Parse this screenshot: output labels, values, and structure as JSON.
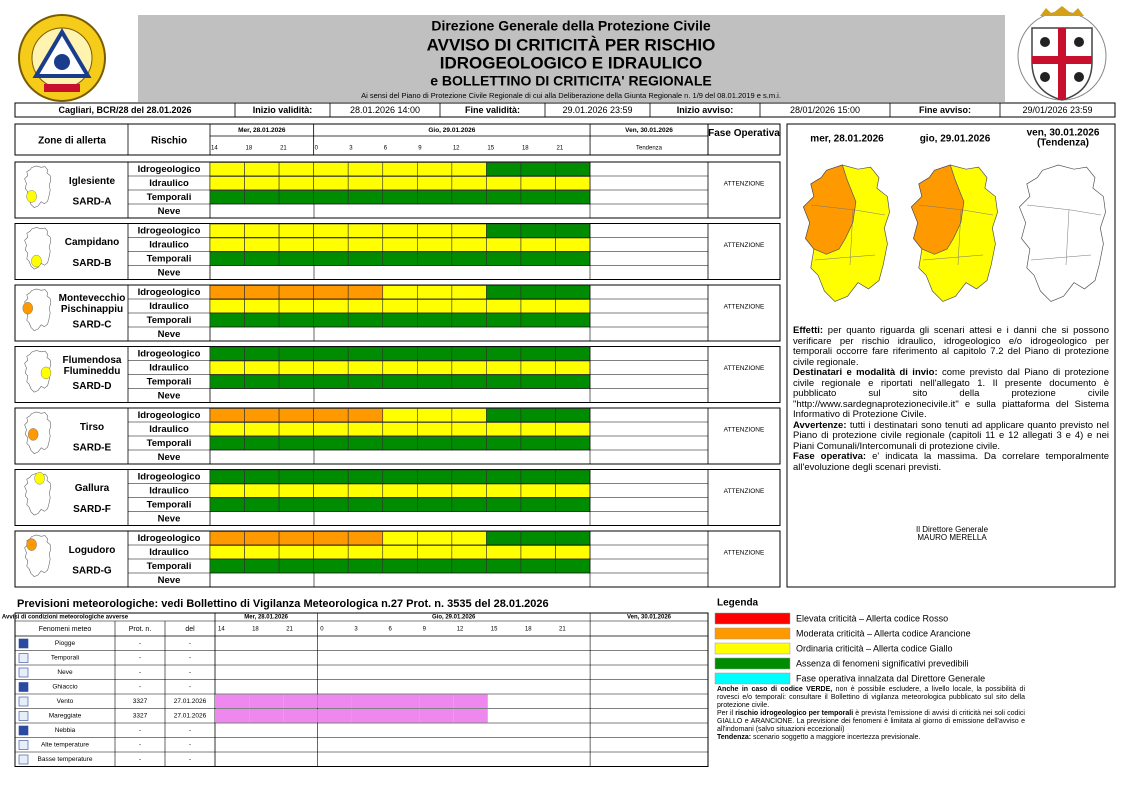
{
  "header": {
    "org": "Direzione Generale della Protezione Civile",
    "title1": "AVVISO DI CRITICITÀ PER RISCHIO",
    "title2": "IDROGEOLOGICO E IDRAULICO",
    "title3": "e BOLLETTINO DI CRITICITA' REGIONALE",
    "legal": "Ai sensi del Piano di Protezione Civile Regionale di cui alla Deliberazione della Giunta Regionale n. 1/9 del 08.01.2019 e s.m.i."
  },
  "info": {
    "issue": "Cagliari, BCR/28 del 28.01.2026",
    "fields": [
      {
        "label": "Inizio validità:",
        "value": "28.01.2026 14:00"
      },
      {
        "label": "Fine validità:",
        "value": "29.01.2026 23:59"
      },
      {
        "label": "Inizio avviso:",
        "value": "28/01/2026 15:00"
      },
      {
        "label": "Fine avviso:",
        "value": "29/01/2026 23:59"
      }
    ]
  },
  "table": {
    "headers": {
      "zone": "Zone di allerta",
      "risk": "Rischio",
      "trend": "Tendenza",
      "phase": "Fase Operativa"
    },
    "days": [
      {
        "label": "Mer, 28.01.2026",
        "hours": [
          "14",
          "18",
          "21"
        ]
      },
      {
        "label": "Gio, 29.01.2026",
        "hours": [
          "0",
          "3",
          "6",
          "9",
          "12",
          "15",
          "18",
          "21"
        ]
      },
      {
        "label": "Ven, 30.01.2026",
        "hours": []
      }
    ],
    "zones": [
      {
        "name": "Iglesiente",
        "code": "SARD-A",
        "icon_color": "#ffff00",
        "phase": "ATTENZIONE",
        "rows": [
          {
            "risk": "Idrogeologico",
            "colors": [
              "#ffff00",
              "#ffff00",
              "#ffff00",
              "#ffff00",
              "#ffff00",
              "#ffff00",
              "#ffff00",
              "#ffff00",
              "#008c00",
              "#008c00",
              "#008c00"
            ]
          },
          {
            "risk": "Idraulico",
            "colors": [
              "#ffff00",
              "#ffff00",
              "#ffff00",
              "#ffff00",
              "#ffff00",
              "#ffff00",
              "#ffff00",
              "#ffff00",
              "#ffff00",
              "#ffff00",
              "#ffff00"
            ]
          },
          {
            "risk": "Temporali",
            "colors": [
              "#008c00",
              "#008c00",
              "#008c00",
              "#008c00",
              "#008c00",
              "#008c00",
              "#008c00",
              "#008c00",
              "#008c00",
              "#008c00",
              "#008c00"
            ]
          },
          {
            "risk": "Neve",
            "colors": []
          }
        ]
      },
      {
        "name": "Campidano",
        "code": "SARD-B",
        "icon_color": "#ffff00",
        "phase": "ATTENZIONE",
        "rows": [
          {
            "risk": "Idrogeologico",
            "colors": [
              "#ffff00",
              "#ffff00",
              "#ffff00",
              "#ffff00",
              "#ffff00",
              "#ffff00",
              "#ffff00",
              "#ffff00",
              "#008c00",
              "#008c00",
              "#008c00"
            ]
          },
          {
            "risk": "Idraulico",
            "colors": [
              "#ffff00",
              "#ffff00",
              "#ffff00",
              "#ffff00",
              "#ffff00",
              "#ffff00",
              "#ffff00",
              "#ffff00",
              "#ffff00",
              "#ffff00",
              "#ffff00"
            ]
          },
          {
            "risk": "Temporali",
            "colors": [
              "#008c00",
              "#008c00",
              "#008c00",
              "#008c00",
              "#008c00",
              "#008c00",
              "#008c00",
              "#008c00",
              "#008c00",
              "#008c00",
              "#008c00"
            ]
          },
          {
            "risk": "Neve",
            "colors": []
          }
        ]
      },
      {
        "name": "Montevecchio Pischinappiu",
        "code": "SARD-C",
        "icon_color": "#ff9900",
        "phase": "ATTENZIONE",
        "rows": [
          {
            "risk": "Idrogeologico",
            "colors": [
              "#ff9900",
              "#ff9900",
              "#ff9900",
              "#ff9900",
              "#ff9900",
              "#ffff00",
              "#ffff00",
              "#ffff00",
              "#008c00",
              "#008c00",
              "#008c00"
            ]
          },
          {
            "risk": "Idraulico",
            "colors": [
              "#ffff00",
              "#ffff00",
              "#ffff00",
              "#ffff00",
              "#ffff00",
              "#ffff00",
              "#ffff00",
              "#ffff00",
              "#ffff00",
              "#ffff00",
              "#ffff00"
            ]
          },
          {
            "risk": "Temporali",
            "colors": [
              "#008c00",
              "#008c00",
              "#008c00",
              "#008c00",
              "#008c00",
              "#008c00",
              "#008c00",
              "#008c00",
              "#008c00",
              "#008c00",
              "#008c00"
            ]
          },
          {
            "risk": "Neve",
            "colors": []
          }
        ]
      },
      {
        "name": "Flumendosa Flumineddu",
        "code": "SARD-D",
        "icon_color": "#ffff00",
        "phase": "ATTENZIONE",
        "rows": [
          {
            "risk": "Idrogeologico",
            "colors": [
              "#008c00",
              "#008c00",
              "#008c00",
              "#008c00",
              "#008c00",
              "#008c00",
              "#008c00",
              "#008c00",
              "#008c00",
              "#008c00",
              "#008c00"
            ]
          },
          {
            "risk": "Idraulico",
            "colors": [
              "#ffff00",
              "#ffff00",
              "#ffff00",
              "#ffff00",
              "#ffff00",
              "#ffff00",
              "#ffff00",
              "#ffff00",
              "#ffff00",
              "#ffff00",
              "#ffff00"
            ]
          },
          {
            "risk": "Temporali",
            "colors": [
              "#008c00",
              "#008c00",
              "#008c00",
              "#008c00",
              "#008c00",
              "#008c00",
              "#008c00",
              "#008c00",
              "#008c00",
              "#008c00",
              "#008c00"
            ]
          },
          {
            "risk": "Neve",
            "colors": []
          }
        ]
      },
      {
        "name": "Tirso",
        "code": "SARD-E",
        "icon_color": "#ff9900",
        "phase": "ATTENZIONE",
        "rows": [
          {
            "risk": "Idrogeologico",
            "colors": [
              "#ff9900",
              "#ff9900",
              "#ff9900",
              "#ff9900",
              "#ff9900",
              "#ffff00",
              "#ffff00",
              "#ffff00",
              "#008c00",
              "#008c00",
              "#008c00"
            ]
          },
          {
            "risk": "Idraulico",
            "colors": [
              "#ffff00",
              "#ffff00",
              "#ffff00",
              "#ffff00",
              "#ffff00",
              "#ffff00",
              "#ffff00",
              "#ffff00",
              "#ffff00",
              "#ffff00",
              "#ffff00"
            ]
          },
          {
            "risk": "Temporali",
            "colors": [
              "#008c00",
              "#008c00",
              "#008c00",
              "#008c00",
              "#008c00",
              "#008c00",
              "#008c00",
              "#008c00",
              "#008c00",
              "#008c00",
              "#008c00"
            ]
          },
          {
            "risk": "Neve",
            "colors": []
          }
        ]
      },
      {
        "name": "Gallura",
        "code": "SARD-F",
        "icon_color": "#ffff00",
        "phase": "ATTENZIONE",
        "rows": [
          {
            "risk": "Idrogeologico",
            "colors": [
              "#008c00",
              "#008c00",
              "#008c00",
              "#008c00",
              "#008c00",
              "#008c00",
              "#008c00",
              "#008c00",
              "#008c00",
              "#008c00",
              "#008c00"
            ]
          },
          {
            "risk": "Idraulico",
            "colors": [
              "#ffff00",
              "#ffff00",
              "#ffff00",
              "#ffff00",
              "#ffff00",
              "#ffff00",
              "#ffff00",
              "#ffff00",
              "#ffff00",
              "#ffff00",
              "#ffff00"
            ]
          },
          {
            "risk": "Temporali",
            "colors": [
              "#008c00",
              "#008c00",
              "#008c00",
              "#008c00",
              "#008c00",
              "#008c00",
              "#008c00",
              "#008c00",
              "#008c00",
              "#008c00",
              "#008c00"
            ]
          },
          {
            "risk": "Neve",
            "colors": []
          }
        ]
      },
      {
        "name": "Logudoro",
        "code": "SARD-G",
        "icon_color": "#ff9900",
        "phase": "ATTENZIONE",
        "rows": [
          {
            "risk": "Idrogeologico",
            "colors": [
              "#ff9900",
              "#ff9900",
              "#ff9900",
              "#ff9900",
              "#ff9900",
              "#ffff00",
              "#ffff00",
              "#ffff00",
              "#008c00",
              "#008c00",
              "#008c00"
            ]
          },
          {
            "risk": "Idraulico",
            "colors": [
              "#ffff00",
              "#ffff00",
              "#ffff00",
              "#ffff00",
              "#ffff00",
              "#ffff00",
              "#ffff00",
              "#ffff00",
              "#ffff00",
              "#ffff00",
              "#ffff00"
            ]
          },
          {
            "risk": "Temporali",
            "colors": [
              "#008c00",
              "#008c00",
              "#008c00",
              "#008c00",
              "#008c00",
              "#008c00",
              "#008c00",
              "#008c00",
              "#008c00",
              "#008c00",
              "#008c00"
            ]
          },
          {
            "risk": "Neve",
            "colors": []
          }
        ]
      }
    ]
  },
  "panel": {
    "maps": [
      {
        "date": "mer, 28.01.2026",
        "fill": "#ffff00",
        "highlight": "#ff9900"
      },
      {
        "date": "gio, 29.01.2026",
        "fill": "#ffff00",
        "highlight": "#ff9900"
      },
      {
        "date": "ven, 30.01.2026",
        "note": "(Tendenza)",
        "fill": "#ffffff",
        "highlight": null
      }
    ],
    "paragraphs": [
      [
        {
          "text": "Effetti:",
          "bold": true
        },
        {
          "text": " per quanto riguarda gli scenari attesi e i danni che si possono verificare per rischio idraulico, idrogeologico e/o idrogeologico per temporali occorre fare riferimento al capitolo 7.2 del Piano di protezione civile regionale.",
          "bold": false
        }
      ],
      [
        {
          "text": "Destinatari e modalità di invio:",
          "bold": true
        },
        {
          "text": " come previsto dal Piano di protezione civile regionale e riportati nell'allegato 1. Il presente documento è pubblicato sul sito della protezione civile \"http://www.sardegnaprotezionecivile.it\" e sulla piattaforma del Sistema Informativo di Protezione Civile.",
          "bold": false
        }
      ],
      [
        {
          "text": "Avvertenze:",
          "bold": true
        },
        {
          "text": " tutti i destinatari sono tenuti ad applicare quanto previsto nel Piano di protezione civile regionale (capitoli 11 e 12 allegati 3 e 4) e nei Piani Comunali/Intercomunali di protezione civile.",
          "bold": false
        }
      ],
      [
        {
          "text": "Fase operativa:",
          "bold": true
        },
        {
          "text": " e' indicata la massima. Da correlare temporalmente all'evoluzione degli scenari previsti.",
          "bold": false
        }
      ]
    ],
    "signature": [
      "Il Direttore Generale",
      "MAURO MERELLA"
    ]
  },
  "meteo": {
    "title": "Previsioni meteorologiche: vedi Bollettino di Vigilanza Meteorologica n.27 Prot. n. 3535 del 28.01.2026",
    "caption": "Avvisi di condizioni meteorologiche avverse",
    "headers": [
      "Fenomeni meteo",
      "Prot. n.",
      "del"
    ],
    "days": [
      {
        "label": "Mer, 28.01.2026",
        "hours": [
          "14",
          "18",
          "21"
        ]
      },
      {
        "label": "Gio, 29.01.2026",
        "hours": [
          "0",
          "3",
          "6",
          "9",
          "12",
          "15",
          "18",
          "21"
        ]
      },
      {
        "label": "Ven, 30.01.2026",
        "hours": []
      }
    ],
    "rows": [
      {
        "name": "Piogge",
        "prot": "-",
        "date": "-",
        "colors": []
      },
      {
        "name": "Temporali",
        "prot": "-",
        "date": "-",
        "colors": []
      },
      {
        "name": "Neve",
        "prot": "-",
        "date": "-",
        "colors": []
      },
      {
        "name": "Ghiaccio",
        "prot": "-",
        "date": "-",
        "colors": []
      },
      {
        "name": "Vento",
        "prot": "3327",
        "date": "27.01.2026",
        "colors": [
          "#ee88ee",
          "#ee88ee",
          "#ee88ee",
          "#ee88ee",
          "#ee88ee",
          "#ee88ee",
          "#ee88ee",
          "#ee88ee"
        ]
      },
      {
        "name": "Mareggiate",
        "prot": "3327",
        "date": "27.01.2026",
        "colors": [
          "#ee88ee",
          "#ee88ee",
          "#ee88ee",
          "#ee88ee",
          "#ee88ee",
          "#ee88ee",
          "#ee88ee",
          "#ee88ee"
        ]
      },
      {
        "name": "Nebbia",
        "prot": "-",
        "date": "-",
        "colors": []
      },
      {
        "name": "Alte temperature",
        "prot": "-",
        "date": "-",
        "colors": []
      },
      {
        "name": "Basse temperature",
        "prot": "-",
        "date": "-",
        "colors": []
      }
    ]
  },
  "legend": {
    "title": "Legenda",
    "items": [
      {
        "color": "#ff0000",
        "label": "Elevata criticità – Allerta codice Rosso"
      },
      {
        "color": "#ff9900",
        "label": "Moderata criticità – Allerta codice Arancione"
      },
      {
        "color": "#ffff00",
        "label": "Ordinaria criticità – Allerta codice Giallo"
      },
      {
        "color": "#008c00",
        "label": "Assenza di fenomeni significativi prevedibili"
      },
      {
        "color": "#00ffff",
        "label": "Fase operativa innalzata dal Direttore Generale"
      }
    ],
    "notes": [
      [
        {
          "text": "Anche in caso di codice VERDE,",
          "bold": true
        },
        {
          "text": " non è possibile escludere, a livello locale, la possibilità di rovesci e/o temporali: consultare il Bollettino di vigilanza meteorologica pubblicato sul sito della protezione civile.",
          "bold": false
        }
      ],
      [
        {
          "text": "Per il ",
          "bold": false
        },
        {
          "text": "rischio idrogeologico per temporali",
          "bold": true
        },
        {
          "text": " è prevista l'emissione di avvisi di criticità nei soli codici GIALLO e ARANCIONE. La previsione dei fenomeni è limitata al giorno di emissione dell'avviso e all'indomani (salvo situazioni eccezionali)",
          "bold": false
        }
      ],
      [
        {
          "text": "Tendenza:",
          "bold": true
        },
        {
          "text": " scenario soggetto a maggiore incertezza previsionale.",
          "bold": false
        }
      ]
    ]
  }
}
